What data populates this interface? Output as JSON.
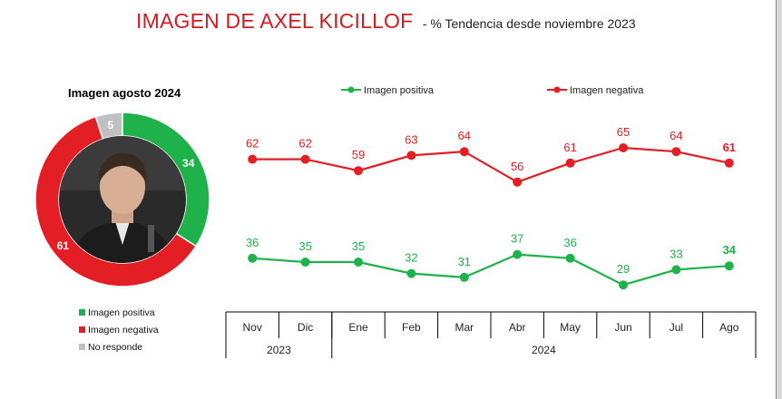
{
  "header": {
    "title": "IMAGEN DE AXEL KICILLOF",
    "subtitle": "- % Tendencia desde noviembre 2023"
  },
  "donut": {
    "title": "Imagen agosto 2024",
    "legend": [
      {
        "label": "Imagen positiva",
        "color": "#1fb24a"
      },
      {
        "label": "Imagen negativa",
        "color": "#e31e24"
      },
      {
        "label": "No responde",
        "color": "#c0c0c0"
      }
    ],
    "photo_icon": "portrait-photo"
  },
  "chart_data": [
    {
      "type": "pie",
      "title": "Imagen agosto 2024",
      "slices": [
        {
          "name": "Imagen positiva",
          "value": 34,
          "color": "#1fb24a"
        },
        {
          "name": "Imagen negativa",
          "value": 61,
          "color": "#e31e24"
        },
        {
          "name": "No responde",
          "value": 5,
          "color": "#c0c0c0"
        }
      ]
    },
    {
      "type": "line",
      "categories": [
        "Nov",
        "Dic",
        "Ene",
        "Feb",
        "Mar",
        "Abr",
        "May",
        "Jun",
        "Jul",
        "Ago"
      ],
      "year_groups": [
        {
          "label": "2023",
          "span": 2
        },
        {
          "label": "2024",
          "span": 8
        }
      ],
      "series": [
        {
          "name": "Imagen positiva",
          "color": "#1fb24a",
          "values": [
            36,
            35,
            35,
            32,
            31,
            37,
            36,
            29,
            33,
            34
          ]
        },
        {
          "name": "Imagen negativa",
          "color": "#e31e24",
          "values": [
            62,
            62,
            59,
            63,
            64,
            56,
            61,
            65,
            64,
            61
          ]
        }
      ],
      "legend_position": "top",
      "grid": false
    }
  ]
}
